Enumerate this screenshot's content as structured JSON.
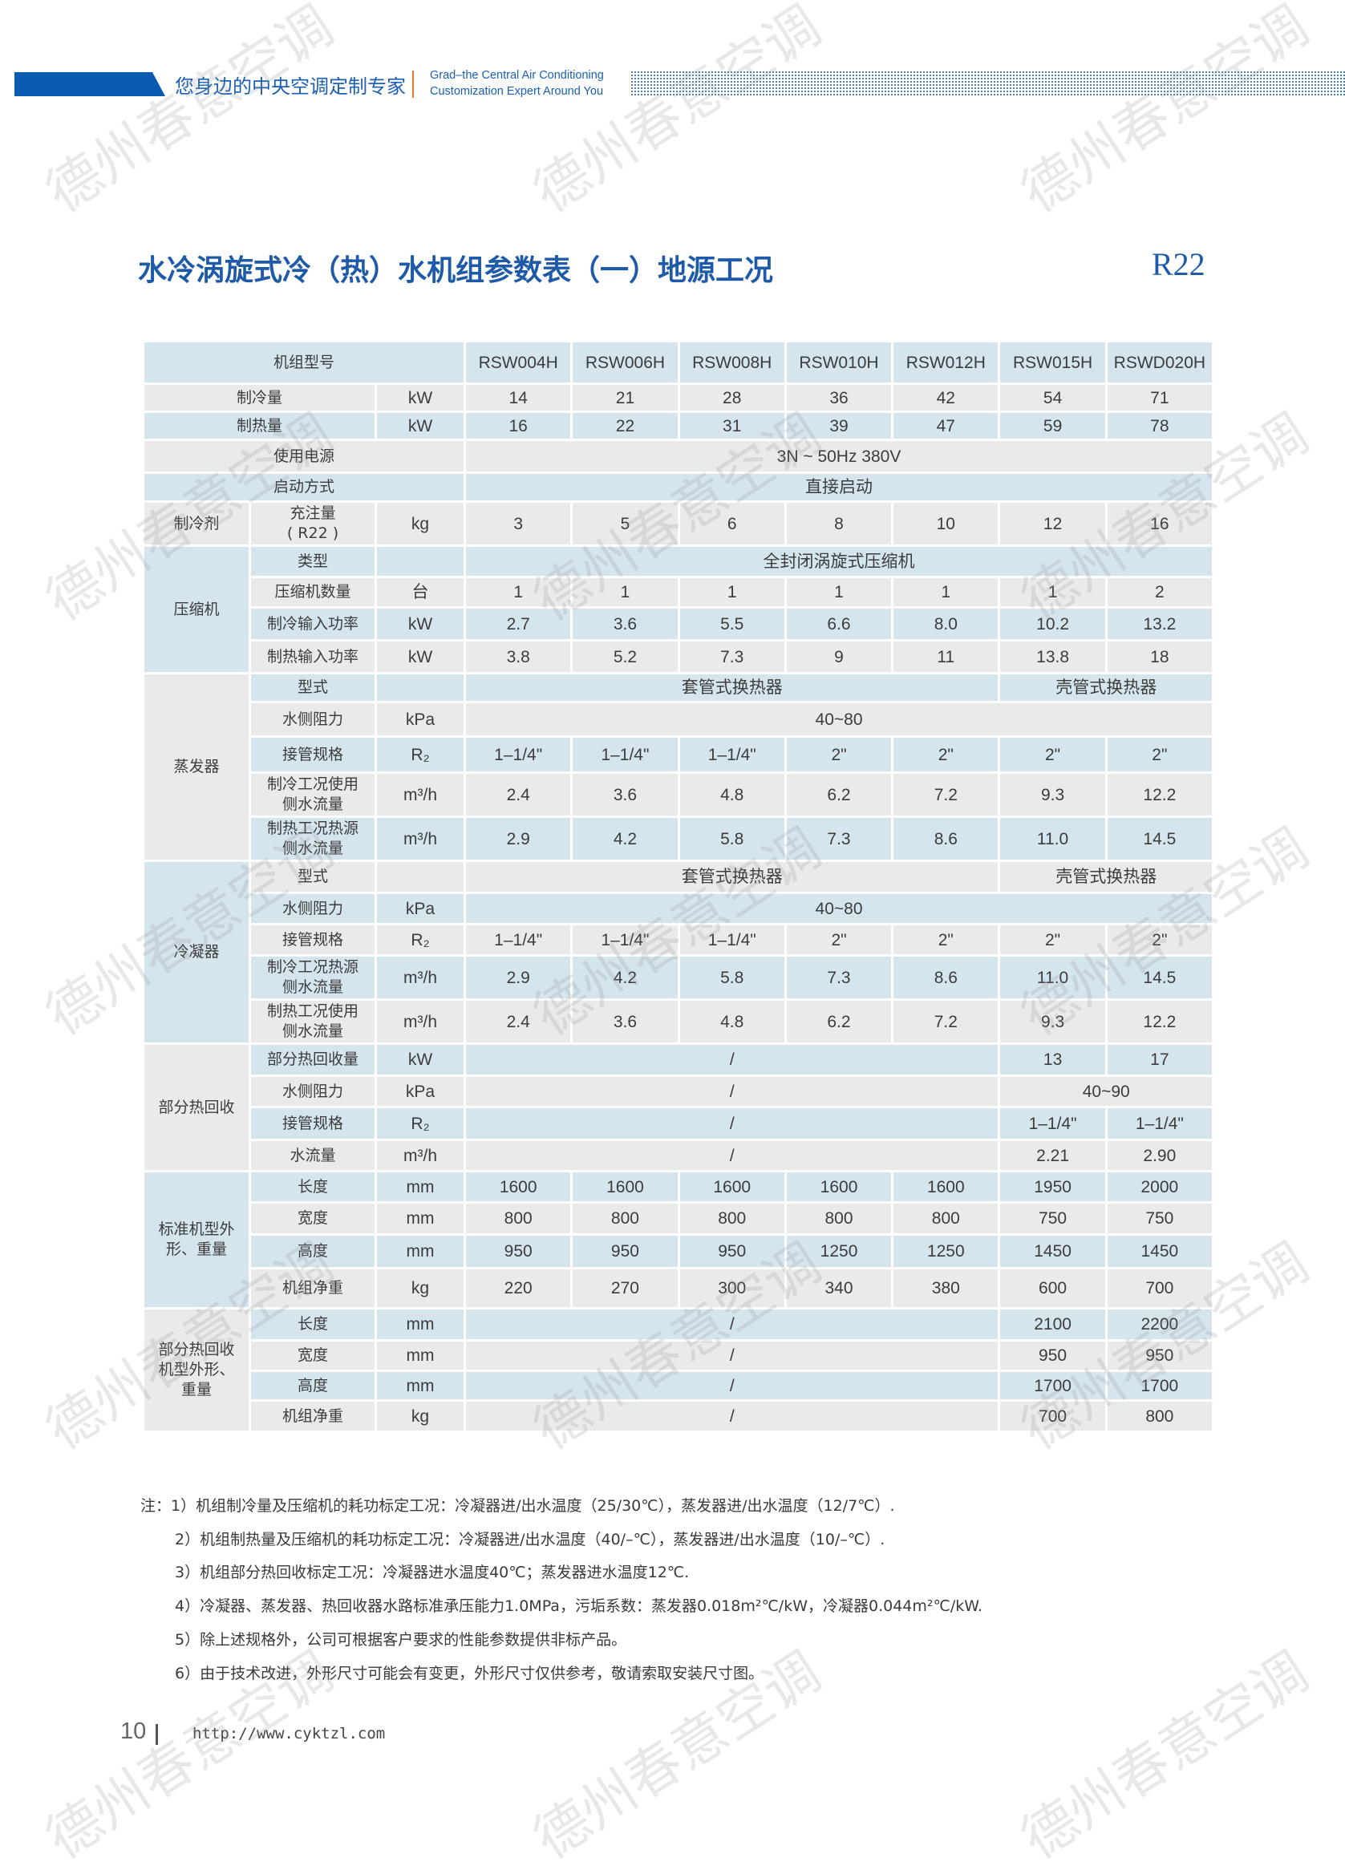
{
  "header": {
    "slogan_cn": "您身边的中央空调定制专家",
    "slogan_en_line1": "Grad–the Central Air Conditioning",
    "slogan_en_line2": "Customization Expert Around You",
    "brand_color": "#0a5bb0"
  },
  "title": "水冷涡旋式冷（热）水机组参数表（一）地源工况",
  "refrigerant_tag": "R22",
  "table": {
    "header_label": "机组型号",
    "models": [
      "RSW004H",
      "RSW006H",
      "RSW008H",
      "RSW010H",
      "RSW012H",
      "RSW015H",
      "RSWD020H"
    ],
    "sections": [
      {
        "group": "",
        "rows": [
          {
            "label": "制冷量",
            "unit": "kW",
            "cells": [
              "14",
              "21",
              "28",
              "36",
              "42",
              "54",
              "71"
            ]
          },
          {
            "label": "制热量",
            "unit": "kW",
            "cells": [
              "16",
              "22",
              "31",
              "39",
              "47",
              "59",
              "78"
            ]
          },
          {
            "label": "使用电源",
            "unit": "",
            "cells": [
              "3N ~ 50Hz   380V"
            ]
          },
          {
            "label": "启动方式",
            "unit": "",
            "cells": [
              "直接启动"
            ]
          }
        ]
      },
      {
        "group": "制冷剂",
        "rows": [
          {
            "label": "充注量\n( R22 )",
            "unit": "kg",
            "cells": [
              "3",
              "5",
              "6",
              "8",
              "10",
              "12",
              "16"
            ]
          }
        ]
      },
      {
        "group": "压缩机",
        "rows": [
          {
            "label": "类型",
            "unit": "",
            "cells": [
              "全封闭涡旋式压缩机"
            ]
          },
          {
            "label": "压缩机数量",
            "unit": "台",
            "cells": [
              "1",
              "1",
              "1",
              "1",
              "1",
              "1",
              "2"
            ]
          },
          {
            "label": "制冷输入功率",
            "unit": "kW",
            "cells": [
              "2.7",
              "3.6",
              "5.5",
              "6.6",
              "8.0",
              "10.2",
              "13.2"
            ]
          },
          {
            "label": "制热输入功率",
            "unit": "kW",
            "cells": [
              "3.8",
              "5.2",
              "7.3",
              "9",
              "11",
              "13.8",
              "18"
            ]
          }
        ]
      },
      {
        "group": "蒸发器",
        "rows": [
          {
            "label": "型式",
            "unit": "",
            "cells": [
              "套管式换热器",
              "壳管式换热器"
            ]
          },
          {
            "label": "水侧阻力",
            "unit": "kPa",
            "cells": [
              "40~80"
            ]
          },
          {
            "label": "接管规格",
            "unit": "R₂",
            "cells": [
              "1–1/4\"",
              "1–1/4\"",
              "1–1/4\"",
              "2\"",
              "2\"",
              "2\"",
              "2\""
            ]
          },
          {
            "label": "制冷工况使用\n侧水流量",
            "unit": "m³/h",
            "cells": [
              "2.4",
              "3.6",
              "4.8",
              "6.2",
              "7.2",
              "9.3",
              "12.2"
            ]
          },
          {
            "label": "制热工况热源\n侧水流量",
            "unit": "m³/h",
            "cells": [
              "2.9",
              "4.2",
              "5.8",
              "7.3",
              "8.6",
              "11.0",
              "14.5"
            ]
          }
        ]
      },
      {
        "group": "冷凝器",
        "rows": [
          {
            "label": "型式",
            "unit": "",
            "cells": [
              "套管式换热器",
              "壳管式换热器"
            ]
          },
          {
            "label": "水侧阻力",
            "unit": "kPa",
            "cells": [
              "40~80"
            ]
          },
          {
            "label": "接管规格",
            "unit": "R₂",
            "cells": [
              "1–1/4\"",
              "1–1/4\"",
              "1–1/4\"",
              "2\"",
              "2\"",
              "2\"",
              "2\""
            ]
          },
          {
            "label": "制冷工况热源\n侧水流量",
            "unit": "m³/h",
            "cells": [
              "2.9",
              "4.2",
              "5.8",
              "7.3",
              "8.6",
              "11.0",
              "14.5"
            ]
          },
          {
            "label": "制热工况使用\n侧水流量",
            "unit": "m³/h",
            "cells": [
              "2.4",
              "3.6",
              "4.8",
              "6.2",
              "7.2",
              "9.3",
              "12.2"
            ]
          }
        ]
      },
      {
        "group": "部分热回收",
        "rows": [
          {
            "label": "部分热回收量",
            "unit": "kW",
            "cells": [
              "/",
              "13",
              "17"
            ]
          },
          {
            "label": "水侧阻力",
            "unit": "kPa",
            "cells": [
              "/",
              "40~90"
            ]
          },
          {
            "label": "接管规格",
            "unit": "R₂",
            "cells": [
              "/",
              "1–1/4\"",
              "1–1/4\""
            ]
          },
          {
            "label": "水流量",
            "unit": "m³/h",
            "cells": [
              "/",
              "2.21",
              "2.90"
            ]
          }
        ]
      },
      {
        "group": "标准机型外\n形、重量",
        "rows": [
          {
            "label": "长度",
            "unit": "mm",
            "cells": [
              "1600",
              "1600",
              "1600",
              "1600",
              "1600",
              "1950",
              "2000"
            ]
          },
          {
            "label": "宽度",
            "unit": "mm",
            "cells": [
              "800",
              "800",
              "800",
              "800",
              "800",
              "750",
              "750"
            ]
          },
          {
            "label": "高度",
            "unit": "mm",
            "cells": [
              "950",
              "950",
              "950",
              "1250",
              "1250",
              "1450",
              "1450"
            ]
          },
          {
            "label": "机组净重",
            "unit": "kg",
            "cells": [
              "220",
              "270",
              "300",
              "340",
              "380",
              "600",
              "700"
            ]
          }
        ]
      },
      {
        "group": "部分热回收\n机型外形、\n重量",
        "rows": [
          {
            "label": "长度",
            "unit": "mm",
            "cells": [
              "/",
              "2100",
              "2200"
            ]
          },
          {
            "label": "宽度",
            "unit": "mm",
            "cells": [
              "/",
              "950",
              "950"
            ]
          },
          {
            "label": "高度",
            "unit": "mm",
            "cells": [
              "/",
              "1700",
              "1700"
            ]
          },
          {
            "label": "机组净重",
            "unit": "kg",
            "cells": [
              "/",
              "700",
              "800"
            ]
          }
        ]
      }
    ],
    "colors": {
      "row_blue": "#d5e5ee",
      "row_gray": "#eaeaea"
    }
  },
  "notes": [
    "注：1）机组制冷量及压缩机的耗功标定工况：冷凝器进/出水温度（25/30℃），蒸发器进/出水温度（12/7℃）.",
    "2）机组制热量及压缩机的耗功标定工况：冷凝器进/出水温度（40/–℃），蒸发器进/出水温度（10/–℃）.",
    "3）机组部分热回收标定工况：冷凝器进水温度40℃；蒸发器进水温度12℃.",
    "4）冷凝器、蒸发器、热回收器水路标准承压能力1.0MPa，污垢系数：蒸发器0.018m²℃/kW，冷凝器0.044m²℃/kW.",
    "5）除上述规格外，公司可根据客户要求的性能参数提供非标产品。",
    "6）由于技术改进，外形尺寸可能会有变更，外形尺寸仅供参考，敬请索取安装尺寸图。"
  ],
  "footer": {
    "page_number": "10",
    "url": "http://www.cyktzl.com"
  },
  "watermark": "德州春意空调"
}
